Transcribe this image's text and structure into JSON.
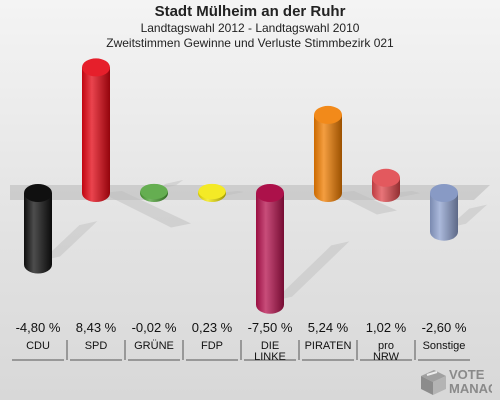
{
  "header": {
    "title": "Stadt Mülheim an der Ruhr",
    "subtitle": "Landtagswahl 2012 - Landtagswahl 2010",
    "subtitle2": "Zweitstimmen Gewinne und Verluste Stimmbezirk 021"
  },
  "logo": {
    "line1": "VOTE",
    "line2": "MANAGER"
  },
  "chart_data": {
    "type": "bar",
    "title": "Stadt Mülheim an der Ruhr",
    "categories": [
      "CDU",
      "SPD",
      "GRÜNE",
      "FDP",
      "DIE LINKE",
      "PIRATEN",
      "pro NRW",
      "Sonstige"
    ],
    "label_lines": [
      [
        "CDU"
      ],
      [
        "SPD"
      ],
      [
        "GRÜNE"
      ],
      [
        "FDP"
      ],
      [
        "DIE",
        "LINKE"
      ],
      [
        "PIRATEN"
      ],
      [
        "pro",
        "NRW"
      ],
      [
        "Sonstige"
      ]
    ],
    "values": [
      -4.8,
      8.43,
      -0.02,
      0.23,
      -7.5,
      5.24,
      1.02,
      -2.6
    ],
    "value_labels": [
      "-4,80 %",
      "8,43 %",
      "-0,02 %",
      "0,23 %",
      "-7,50 %",
      "5,24 %",
      "1,02 %",
      "-2,60 %"
    ],
    "colors": [
      "#111111",
      "#e30613",
      "#4aa032",
      "#f2e600",
      "#b5124e",
      "#f07d00",
      "#e0474c",
      "#8fa2cf"
    ]
  }
}
